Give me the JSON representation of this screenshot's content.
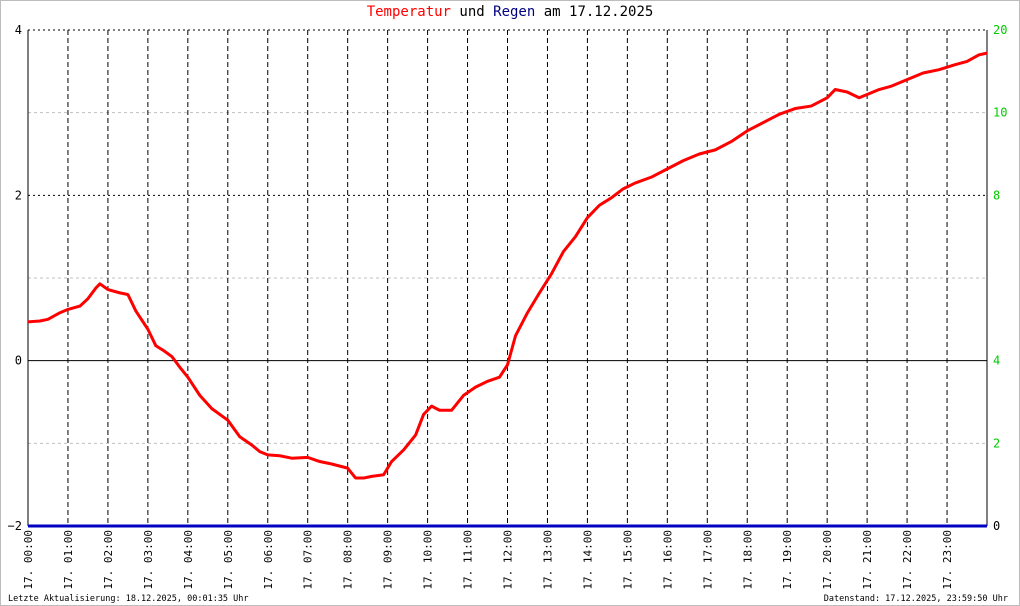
{
  "title": {
    "part1": "Temperatur",
    "part2": " und ",
    "part3": "Regen",
    "part4": " am 17.12.2025"
  },
  "footer": {
    "left": "Letzte Aktualisierung: 18.12.2025, 00:01:35 Uhr",
    "right": "Datenstand: 17.12.2025, 23:59:50 Uhr"
  },
  "colors": {
    "temperature": "#ff0000",
    "rain": "#0000c0",
    "right_axis_labels": "#00cc00",
    "grid": "#000000",
    "minor_grid": "#c0c0c0"
  },
  "chart_data": {
    "type": "line",
    "x_axis": {
      "unit": "hour",
      "range": [
        0,
        24
      ],
      "tick_labels": [
        "17. 00:00",
        "17. 01:00",
        "17. 02:00",
        "17. 03:00",
        "17. 04:00",
        "17. 05:00",
        "17. 06:00",
        "17. 07:00",
        "17. 08:00",
        "17. 09:00",
        "17. 10:00",
        "17. 11:00",
        "17. 12:00",
        "17. 13:00",
        "17. 14:00",
        "17. 15:00",
        "17. 16:00",
        "17. 17:00",
        "17. 18:00",
        "17. 19:00",
        "17. 20:00",
        "17. 21:00",
        "17. 22:00",
        "17. 23:00"
      ]
    },
    "y_left": {
      "range": [
        -2,
        4
      ],
      "ticks": [
        -2,
        0,
        2,
        4
      ]
    },
    "y_right": {
      "range": [
        0,
        20
      ],
      "ticks": [
        0,
        2,
        4,
        8,
        10,
        20
      ],
      "tick_values_placed": [
        0,
        2,
        4,
        8,
        10,
        20
      ]
    },
    "grid": true,
    "series": [
      {
        "name": "Temperatur",
        "axis": "left",
        "x": [
          0.0,
          0.3,
          0.5,
          0.8,
          1.0,
          1.3,
          1.5,
          1.7,
          1.8,
          2.0,
          2.3,
          2.5,
          2.7,
          3.0,
          3.2,
          3.4,
          3.6,
          3.8,
          4.0,
          4.3,
          4.6,
          5.0,
          5.3,
          5.6,
          5.8,
          6.0,
          6.3,
          6.6,
          7.0,
          7.3,
          7.6,
          8.0,
          8.2,
          8.4,
          8.6,
          8.9,
          9.1,
          9.4,
          9.7,
          9.9,
          10.1,
          10.3,
          10.6,
          10.9,
          11.2,
          11.5,
          11.8,
          12.0,
          12.2,
          12.5,
          12.8,
          13.1,
          13.4,
          13.7,
          14.0,
          14.3,
          14.6,
          14.9,
          15.2,
          15.6,
          16.0,
          16.4,
          16.8,
          17.2,
          17.6,
          18.0,
          18.4,
          18.8,
          19.2,
          19.6,
          20.0,
          20.2,
          20.5,
          20.8,
          21.0,
          21.3,
          21.6,
          22.0,
          22.4,
          22.8,
          23.2,
          23.5,
          23.8,
          24.0
        ],
        "y": [
          0.47,
          0.48,
          0.5,
          0.58,
          0.62,
          0.66,
          0.75,
          0.88,
          0.93,
          0.86,
          0.82,
          0.8,
          0.6,
          0.38,
          0.18,
          0.12,
          0.05,
          -0.08,
          -0.2,
          -0.42,
          -0.58,
          -0.72,
          -0.92,
          -1.02,
          -1.1,
          -1.14,
          -1.15,
          -1.18,
          -1.17,
          -1.22,
          -1.25,
          -1.3,
          -1.42,
          -1.42,
          -1.4,
          -1.38,
          -1.22,
          -1.08,
          -0.9,
          -0.65,
          -0.55,
          -0.6,
          -0.6,
          -0.42,
          -0.32,
          -0.25,
          -0.2,
          -0.05,
          0.3,
          0.58,
          0.82,
          1.05,
          1.32,
          1.5,
          1.73,
          1.88,
          1.97,
          2.08,
          2.15,
          2.22,
          2.32,
          2.42,
          2.5,
          2.55,
          2.65,
          2.78,
          2.88,
          2.98,
          3.05,
          3.08,
          3.18,
          3.28,
          3.25,
          3.18,
          3.22,
          3.28,
          3.32,
          3.4,
          3.48,
          3.52,
          3.58,
          3.62,
          3.7,
          3.72
        ]
      },
      {
        "name": "Regen",
        "axis": "right",
        "x": [
          0,
          24
        ],
        "y": [
          0,
          0
        ]
      }
    ]
  }
}
